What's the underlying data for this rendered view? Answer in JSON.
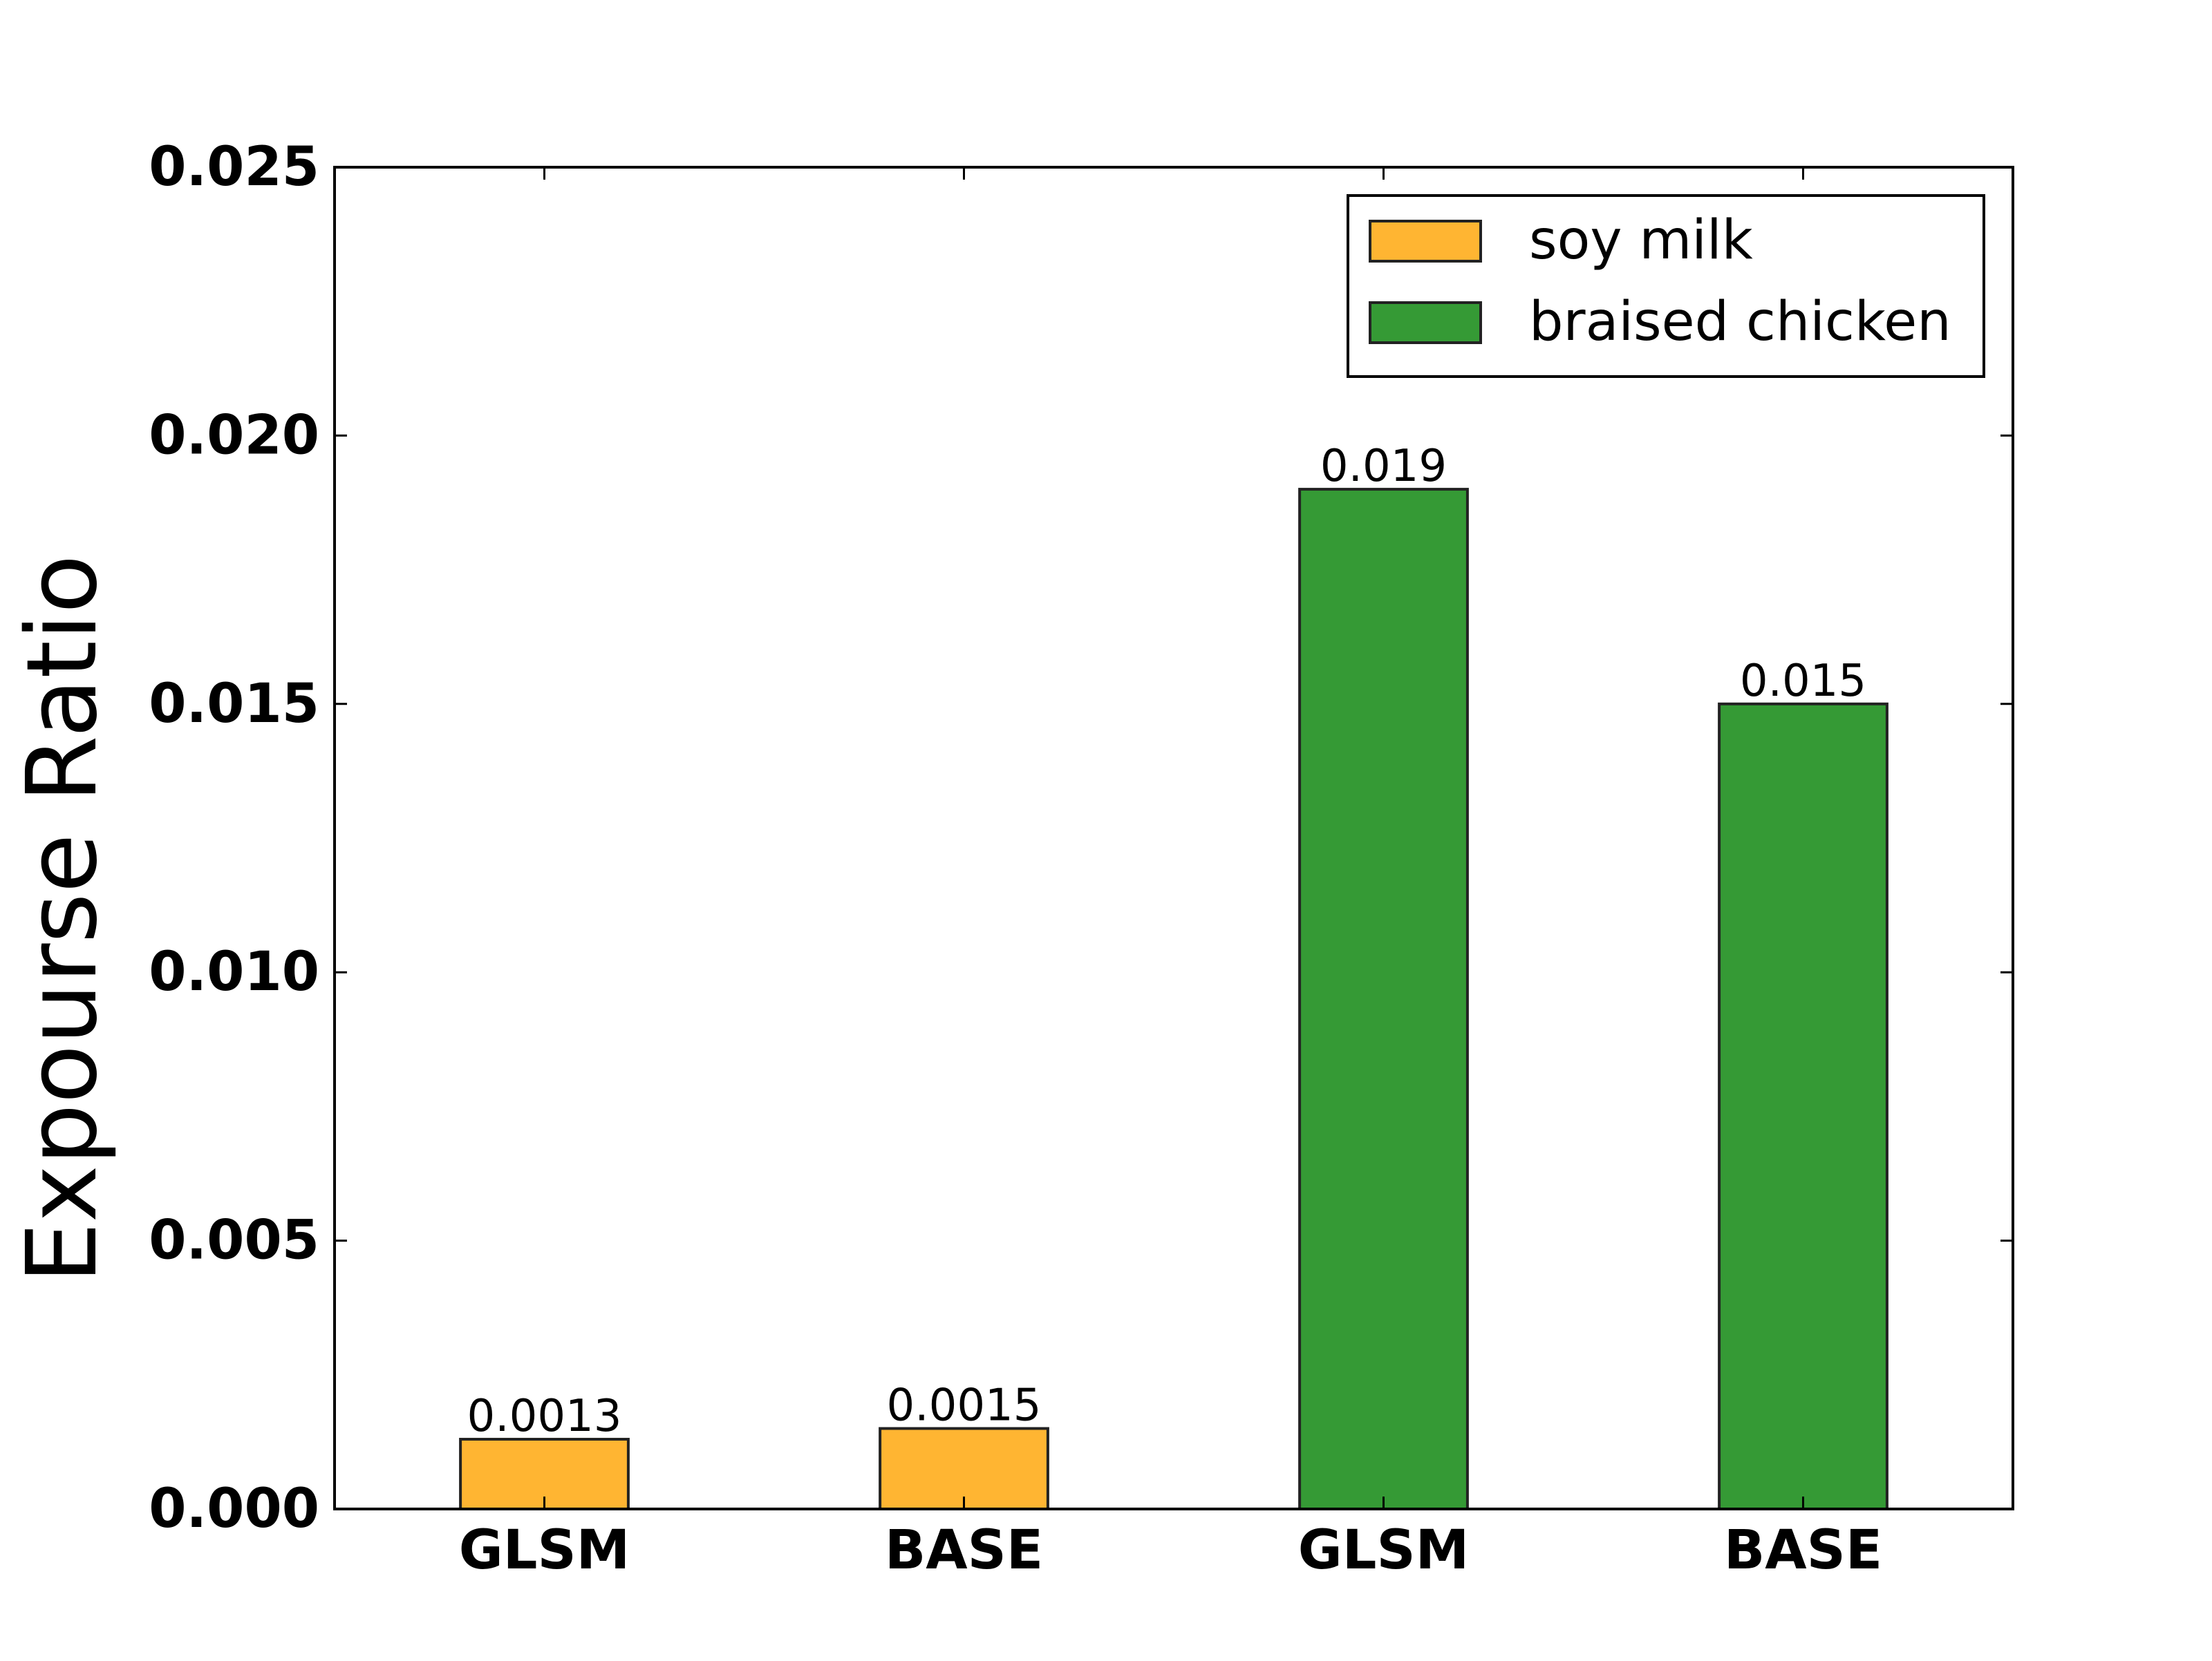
{
  "chart_data": {
    "type": "bar",
    "title": "",
    "xlabel": "",
    "ylabel": "Expourse Ratio",
    "ylim": [
      0,
      0.025
    ],
    "yticks": [
      "0.000",
      "0.005",
      "0.010",
      "0.015",
      "0.020",
      "0.025"
    ],
    "ytick_values": [
      0,
      0.005,
      0.01,
      0.015,
      0.02,
      0.025
    ],
    "grid": false,
    "legend_position": "top-right",
    "categories": [
      "GLSM",
      "BASE",
      "GLSM",
      "BASE"
    ],
    "series": [
      {
        "name": "soy milk",
        "color": "#FFB532",
        "values": [
          0.0013,
          0.0015,
          null,
          null
        ],
        "labels": [
          "0.0013",
          "0.0015",
          null,
          null
        ]
      },
      {
        "name": "braised chicken",
        "color": "#359A35",
        "values": [
          null,
          null,
          0.019,
          0.015
        ],
        "labels": [
          null,
          null,
          "0.019",
          "0.015"
        ]
      }
    ]
  }
}
